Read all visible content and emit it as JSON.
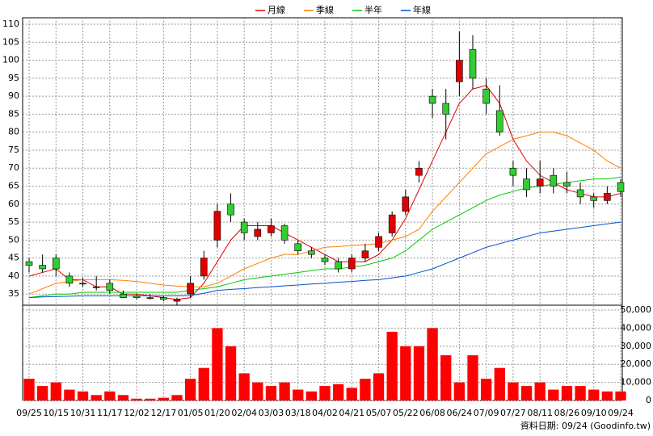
{
  "chart_data": {
    "type": "candlestick",
    "categories": [
      "09/25",
      null,
      "10/15",
      null,
      "10/31",
      null,
      "11/17",
      null,
      "12/02",
      null,
      "12/17",
      null,
      "01/05",
      null,
      "01/20",
      null,
      "02/04",
      null,
      "03/03",
      null,
      "03/18",
      null,
      "04/02",
      null,
      "04/21",
      null,
      "05/07",
      null,
      "05/22",
      null,
      "06/08",
      null,
      "06/24",
      null,
      "07/09",
      null,
      "07/27",
      null,
      "08/11",
      null,
      "08/26",
      null,
      "09/10",
      null,
      "09/24"
    ],
    "open": [
      44,
      43,
      45,
      40,
      38,
      37,
      38,
      35,
      34.5,
      34,
      34,
      33,
      35,
      40,
      50,
      60,
      55,
      51,
      52,
      54,
      49,
      47,
      45,
      44,
      42,
      45,
      48,
      52,
      58,
      68,
      90,
      88,
      94,
      103,
      92,
      86,
      70,
      67,
      65,
      68,
      66,
      64,
      62,
      61,
      66
    ],
    "high": [
      45,
      46,
      46,
      41,
      39.5,
      40,
      39,
      36,
      35,
      35,
      34.5,
      34,
      40,
      47,
      60,
      63,
      56,
      55,
      56,
      54.5,
      50,
      48,
      46,
      45,
      46,
      49,
      52,
      58,
      64,
      72,
      92,
      92,
      108,
      107,
      95,
      93,
      72,
      70,
      72,
      70,
      69,
      66,
      63,
      65,
      67
    ],
    "low": [
      41,
      41,
      40,
      37,
      37,
      36,
      35,
      34,
      33.5,
      33.5,
      33,
      32,
      34,
      39,
      48,
      55,
      50,
      50,
      51,
      49,
      46,
      45,
      43,
      41,
      41,
      44,
      47,
      51,
      57,
      66,
      84,
      78,
      90,
      92,
      85,
      79,
      65,
      62,
      63,
      63,
      63,
      60,
      59,
      60,
      62
    ],
    "close": [
      43,
      42,
      42,
      38,
      38,
      37,
      36,
      34,
      34,
      34,
      33.5,
      33.5,
      38,
      45,
      58,
      57,
      52,
      53,
      54,
      50,
      47,
      46,
      44,
      42,
      45,
      47,
      51,
      57,
      62,
      70,
      88,
      85,
      100,
      95,
      88,
      80,
      68,
      64,
      67,
      65,
      65,
      62,
      61,
      63,
      63.5
    ],
    "up_color": "#e00000",
    "down_color": "#33cc33",
    "ma_series": [
      {
        "name": "月線",
        "color": "#e00000",
        "values": [
          40,
          41,
          42,
          39,
          39,
          37,
          37,
          35,
          35,
          34.5,
          34,
          33.5,
          34,
          38,
          44,
          50,
          54,
          54,
          54,
          52,
          50,
          48,
          46,
          44,
          44,
          44,
          46,
          50,
          56,
          64,
          72,
          80,
          88,
          92,
          93,
          88,
          78,
          72,
          68,
          66,
          64,
          63,
          62,
          62,
          63
        ]
      },
      {
        "name": "季線",
        "color": "#ff7f00",
        "values": [
          35,
          36.5,
          38,
          38.5,
          39,
          39,
          39,
          38.8,
          38.5,
          38,
          37.5,
          37.2,
          37,
          37,
          38,
          40,
          42,
          43.5,
          45,
          46,
          46,
          47,
          48,
          48.2,
          48.5,
          48.7,
          49,
          50,
          51,
          53,
          58,
          62,
          66,
          70,
          74,
          76,
          78,
          79,
          80,
          80,
          79,
          77,
          75,
          72,
          70
        ]
      },
      {
        "name": "半年",
        "color": "#00cc00",
        "values": [
          34,
          34.5,
          35,
          35,
          35.5,
          35.5,
          35.5,
          35.5,
          35.5,
          35.5,
          35.5,
          35.5,
          36,
          36.5,
          37,
          38,
          39,
          39.5,
          40,
          40.5,
          41,
          41.5,
          42,
          42,
          42.5,
          43,
          44,
          45,
          47,
          50,
          53,
          55,
          57,
          59,
          61,
          62.5,
          63.5,
          64.5,
          65,
          65.5,
          66,
          66.5,
          67,
          67,
          67.5
        ]
      },
      {
        "name": "年線",
        "color": "#0050d0",
        "values": [
          34,
          34.2,
          34.3,
          34.4,
          34.5,
          34.5,
          34.5,
          34.5,
          34.5,
          34.5,
          34.5,
          34.5,
          34.6,
          35.2,
          36,
          36.3,
          36.5,
          36.8,
          37,
          37.3,
          37.5,
          37.8,
          38,
          38.3,
          38.5,
          38.8,
          39,
          39.5,
          40,
          41,
          42,
          43.5,
          45,
          46.5,
          48,
          49,
          50,
          51,
          52,
          52.5,
          53,
          53.5,
          54,
          54.5,
          55
        ]
      }
    ],
    "ylim": [
      31.9,
      111.8
    ],
    "yticks": [
      35,
      40,
      45,
      50,
      55,
      60,
      65,
      70,
      75,
      80,
      85,
      90,
      95,
      100,
      105,
      110
    ],
    "volume": {
      "color": "#ff0000",
      "values": [
        12000,
        8000,
        10000,
        6000,
        5000,
        3000,
        5000,
        3000,
        1000,
        1000,
        1500,
        3000,
        12000,
        18000,
        40000,
        30000,
        15000,
        10000,
        8000,
        10000,
        6000,
        5000,
        8000,
        9000,
        7000,
        12000,
        15000,
        38000,
        30000,
        30000,
        40000,
        25000,
        10000,
        25000,
        12000,
        18000,
        10000,
        8000,
        10000,
        6000,
        8000,
        8000,
        6000,
        5000,
        5000
      ],
      "ylim": [
        0,
        52700
      ],
      "yticks": [
        0,
        {
          "value": 10000,
          "label": "10,000"
        },
        {
          "value": 20000,
          "label": "20,000"
        },
        {
          "value": 30000,
          "label": "30,000"
        },
        {
          "value": 40000,
          "label": "40,000"
        },
        {
          "value": 50000,
          "label": "50,000"
        }
      ]
    }
  },
  "footer": "資料日期: 09/24 (Goodinfo.tw)"
}
